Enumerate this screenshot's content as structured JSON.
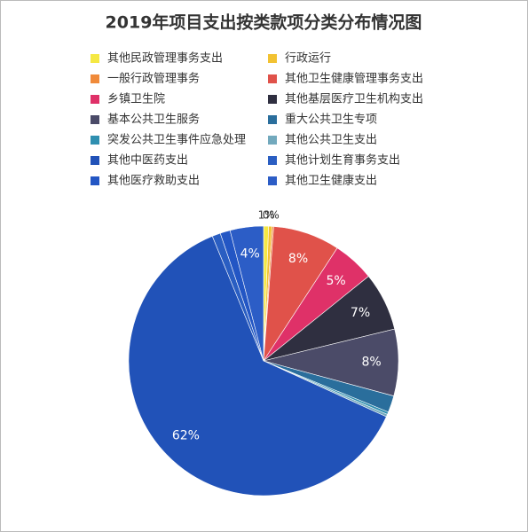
{
  "chart_data": {
    "type": "pie",
    "title": "2019年项目支出按类款项分类分布情况图",
    "categories": [
      "其他民政管理事务支出",
      "行政运行",
      "一般行政管理事务",
      "其他卫生健康管理事务支出",
      "乡镇卫生院",
      "其他基层医疗卫生机构支出",
      "基本公共卫生服务",
      "重大公共卫生专项",
      "突发公共卫生事件应急处理",
      "其他公共卫生支出",
      "其他中医药支出",
      "其他计划生育事务支出",
      "其他医疗救助支出",
      "其他卫生健康支出"
    ],
    "values": [
      0.6,
      0.4,
      0.2,
      8,
      5,
      7,
      8,
      2,
      0.3,
      0.3,
      62,
      1,
      1.2,
      4
    ],
    "value_labels": [
      "1%",
      "0%",
      null,
      "8%",
      "5%",
      "7%",
      "8%",
      null,
      null,
      null,
      "62%",
      null,
      null,
      "4%"
    ],
    "colors": [
      "#f5e843",
      "#f2c232",
      "#f08a3a",
      "#e0524a",
      "#df3168",
      "#2f2f40",
      "#4b4b68",
      "#2a6e9c",
      "#2f8fb0",
      "#72a9bd",
      "#2152b8",
      "#2a5ec2",
      "#2356c4",
      "#2c5dc6"
    ]
  }
}
